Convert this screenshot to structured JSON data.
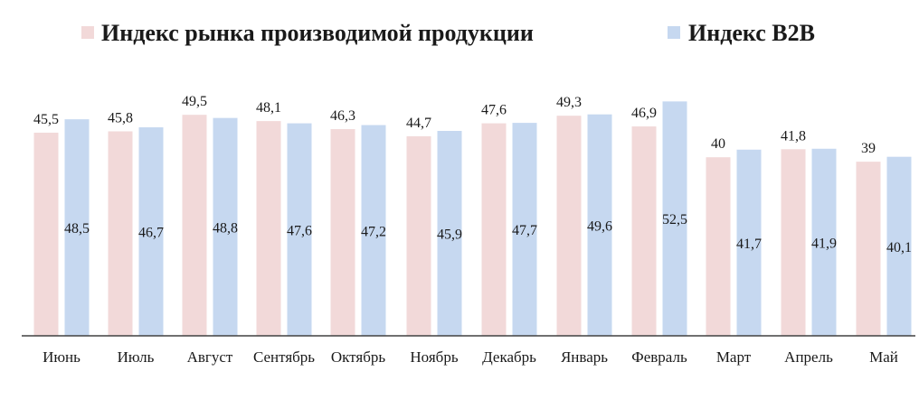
{
  "chart_data": {
    "type": "bar",
    "title": "",
    "xlabel": "",
    "ylabel": "",
    "ylim": [
      0,
      55
    ],
    "categories": [
      "Июнь",
      "Июль",
      "Август",
      "Сентябрь",
      "Октябрь",
      "Ноябрь",
      "Декабрь",
      "Январь",
      "Февраль",
      "Март",
      "Апрель",
      "Май"
    ],
    "series": [
      {
        "name": "Индекс рынка производимой продукции",
        "color": "#f2d9d9",
        "values": [
          45.5,
          45.8,
          49.5,
          48.1,
          46.3,
          44.7,
          47.6,
          49.3,
          46.9,
          40,
          41.8,
          39
        ],
        "labels": [
          "45,5",
          "45,8",
          "49,5",
          "48,1",
          "46,3",
          "44,7",
          "47,6",
          "49,3",
          "46,9",
          "40",
          "41,8",
          "39"
        ]
      },
      {
        "name": "Индекс B2B",
        "color": "#c6d8f0",
        "values": [
          48.5,
          46.7,
          48.8,
          47.6,
          47.2,
          45.9,
          47.7,
          49.6,
          52.5,
          41.7,
          41.9,
          40.1
        ],
        "labels": [
          "48,5",
          "46,7",
          "48,8",
          "47,6",
          "47,2",
          "45,9",
          "47,7",
          "49,6",
          "52,5",
          "41,7",
          "41,9",
          "40,1"
        ]
      }
    ],
    "legend_position": "top",
    "axis_color": "#404040"
  }
}
